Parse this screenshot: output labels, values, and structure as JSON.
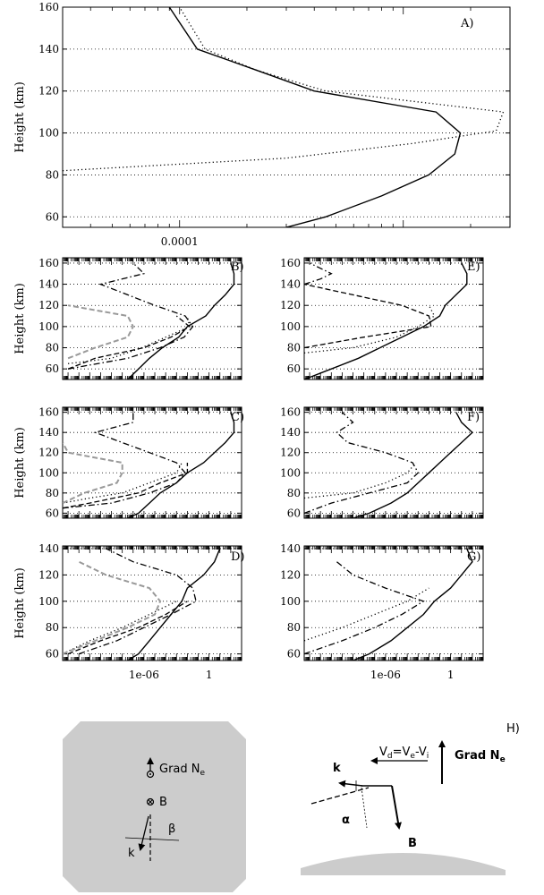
{
  "figure": {
    "y_axis_label": "Height (km)"
  },
  "chart_data": [
    {
      "type": "line",
      "panel_label": "A)",
      "ylabel": "Height (km)",
      "ylim": [
        55,
        160
      ],
      "y_ticks": [
        60,
        80,
        100,
        120,
        140,
        160
      ],
      "x_scale": "log",
      "xlim": [
        3e-05,
        0.003
      ],
      "x_tick_labels": [
        {
          "value": 0.0001,
          "label": "0.0001"
        }
      ],
      "grid": true,
      "series": [
        {
          "style": "solid",
          "x": [
            0.0003,
            0.00045,
            0.0008,
            0.0013,
            0.0017,
            0.0018,
            0.0014,
            0.0004,
            0.00022,
            0.00012,
            9e-05
          ],
          "y": [
            55,
            60,
            70,
            80,
            90,
            100,
            110,
            120,
            130,
            140,
            160
          ]
        },
        {
          "style": "dotted",
          "x": [
            3e-05,
            0.0003,
            0.0011,
            0.0026,
            0.0028,
            0.00045,
            0.00022,
            0.00013,
            0.0001
          ],
          "y": [
            82,
            88,
            95,
            101,
            110,
            120,
            130,
            140,
            160
          ]
        }
      ]
    },
    {
      "type": "line",
      "panel_label": "B)",
      "ylabel": "Height (km)",
      "ylim": [
        50,
        165
      ],
      "y_ticks": [
        60,
        80,
        100,
        120,
        140,
        160
      ],
      "x_scale": "log",
      "grid": true,
      "series": [
        {
          "style": "solid",
          "color": "#000000",
          "y": [
            50,
            60,
            70,
            80,
            90,
            100,
            110,
            120,
            130,
            140,
            150,
            160
          ],
          "x": [
            -7.5,
            -6.5,
            -5.5,
            -4.3,
            -2.8,
            -2,
            -0.3,
            0.5,
            1.5,
            2.3,
            2.3,
            2
          ]
        },
        {
          "style": "dashdot",
          "color": "#000000",
          "y": [
            60,
            70,
            80,
            90,
            100,
            110,
            120,
            130,
            140,
            150,
            160
          ],
          "x": [
            -13,
            -7.5,
            -4.5,
            -2.3,
            -1.5,
            -2.2,
            -5,
            -7.5,
            -10,
            -6,
            -7
          ]
        },
        {
          "style": "dashed",
          "color": "#000000",
          "y": [
            60,
            70,
            80,
            90,
            100,
            110
          ],
          "x": [
            -13,
            -10.5,
            -6,
            -3.5,
            -1.8,
            -3
          ]
        },
        {
          "style": "dotted",
          "color": "#000000",
          "y": [
            65,
            70,
            80,
            90,
            100,
            110
          ],
          "x": [
            -13,
            -9,
            -6.2,
            -4,
            -1.8,
            -2
          ]
        },
        {
          "style": "dashed",
          "color": "#999999",
          "y": [
            70,
            80,
            90,
            100,
            110,
            120
          ],
          "x": [
            -13,
            -10.5,
            -7.5,
            -7,
            -7.5,
            -13
          ]
        }
      ]
    },
    {
      "type": "line",
      "panel_label": "E)",
      "ylim": [
        50,
        165
      ],
      "y_ticks": [
        60,
        80,
        100,
        120,
        140,
        160
      ],
      "x_scale": "log",
      "grid": true,
      "series": [
        {
          "style": "solid",
          "color": "#000000",
          "y": [
            50,
            60,
            70,
            80,
            90,
            100,
            110,
            120,
            130,
            140,
            150,
            160
          ],
          "x": [
            -13.5,
            -11,
            -8.5,
            -6.5,
            -4.5,
            -2.5,
            -1,
            -0.5,
            0.5,
            1.5,
            1.5,
            1
          ]
        },
        {
          "style": "dashdot",
          "color": "#000000",
          "y": [
            140,
            145,
            150,
            155,
            160
          ],
          "x": [
            -13.5,
            -12,
            -11,
            -12,
            -13
          ]
        },
        {
          "style": "dashed",
          "color": "#000000",
          "y": [
            80,
            90,
            100,
            110,
            120,
            130,
            140
          ],
          "x": [
            -13.5,
            -8,
            -1.8,
            -2,
            -4.5,
            -9,
            -13.5
          ]
        },
        {
          "style": "dotted",
          "color": "#000000",
          "y": [
            75,
            80,
            90,
            100,
            110,
            120
          ],
          "x": [
            -13.5,
            -9,
            -5,
            -3,
            -1.5,
            -2
          ]
        }
      ]
    },
    {
      "type": "line",
      "panel_label": "C)",
      "ylabel": "Height (km)",
      "ylim": [
        55,
        165
      ],
      "y_ticks": [
        60,
        80,
        100,
        120,
        140,
        160
      ],
      "x_scale": "log",
      "grid": true,
      "series": [
        {
          "style": "solid",
          "color": "#000000",
          "y": [
            55,
            60,
            70,
            80,
            90,
            100,
            110,
            120,
            130,
            140,
            150,
            160
          ],
          "x": [
            -7.5,
            -6.5,
            -5.5,
            -4.5,
            -3,
            -2,
            -0.5,
            0.5,
            1.5,
            2.3,
            2.3,
            2
          ]
        },
        {
          "style": "dashdot",
          "color": "#000000",
          "y": [
            65,
            70,
            80,
            90,
            100,
            110,
            120,
            130,
            140,
            150,
            160
          ],
          "x": [
            -13.5,
            -9,
            -5.5,
            -3,
            -2.2,
            -3,
            -5.5,
            -8,
            -10.5,
            -7,
            -7
          ]
        },
        {
          "style": "dashed",
          "color": "#000000",
          "y": [
            65,
            70,
            80,
            90,
            100,
            110
          ],
          "x": [
            -13.5,
            -11,
            -6.5,
            -4.5,
            -2,
            -2
          ]
        },
        {
          "style": "dotted",
          "color": "#000000",
          "y": [
            70,
            75,
            80,
            90,
            100,
            110
          ],
          "x": [
            -13.5,
            -11,
            -8,
            -5.5,
            -3,
            -2.5
          ]
        },
        {
          "style": "dashed",
          "color": "#999999",
          "y": [
            70,
            80,
            90,
            100,
            110,
            120,
            130
          ],
          "x": [
            -13.5,
            -11.5,
            -8.5,
            -8,
            -8,
            -13,
            -13.5
          ]
        }
      ]
    },
    {
      "type": "line",
      "panel_label": "F)",
      "ylim": [
        55,
        165
      ],
      "y_ticks": [
        60,
        80,
        100,
        120,
        140,
        160
      ],
      "x_scale": "log",
      "grid": true,
      "series": [
        {
          "style": "solid",
          "color": "#000000",
          "y": [
            55,
            60,
            70,
            80,
            90,
            100,
            110,
            120,
            130,
            140,
            150,
            160
          ],
          "x": [
            -9,
            -7.5,
            -5.5,
            -4,
            -3,
            -2,
            -1,
            0,
            1,
            2,
            1,
            0.5
          ]
        },
        {
          "style": "dashdot",
          "color": "#000000",
          "y": [
            60,
            70,
            80,
            90,
            100,
            110,
            120,
            130,
            140,
            150,
            160
          ],
          "x": [
            -13.5,
            -11,
            -7.5,
            -4,
            -3,
            -3.5,
            -6,
            -9.5,
            -10.5,
            -9,
            -10
          ]
        },
        {
          "style": "dotted",
          "color": "#000000",
          "y": [
            75,
            80,
            90,
            100,
            110
          ],
          "x": [
            -13.5,
            -9,
            -6,
            -4,
            -3.2
          ]
        }
      ]
    },
    {
      "type": "line",
      "panel_label": "D)",
      "ylabel": "Height (km)",
      "ylim": [
        55,
        142
      ],
      "y_ticks": [
        60,
        80,
        100,
        120,
        140
      ],
      "x_scale": "log",
      "xlim": [
        -13.5,
        3
      ],
      "x_tick_labels": [
        {
          "value": -6,
          "label": "1e-06"
        },
        {
          "value": 0,
          "label": "1"
        }
      ],
      "grid": true,
      "series": [
        {
          "style": "solid",
          "color": "#000000",
          "y": [
            55,
            60,
            70,
            80,
            90,
            100,
            110,
            120,
            130,
            140
          ],
          "x": [
            -7.5,
            -6.5,
            -5.5,
            -4.5,
            -3.5,
            -2.5,
            -2,
            -0.5,
            0.5,
            1
          ]
        },
        {
          "style": "dashdot",
          "color": "#000000",
          "y": [
            60,
            70,
            80,
            90,
            100,
            110,
            120,
            130,
            140
          ],
          "x": [
            -12,
            -8.5,
            -6,
            -3.5,
            -1.2,
            -1.5,
            -3,
            -7,
            -9.5
          ]
        },
        {
          "style": "dashed",
          "color": "#000000",
          "y": [
            60,
            70,
            80,
            90,
            100
          ],
          "x": [
            -13,
            -10,
            -6.5,
            -4,
            -2
          ]
        },
        {
          "style": "dotted",
          "color": "#000000",
          "y": [
            60,
            70,
            80,
            90,
            100
          ],
          "x": [
            -13.5,
            -11,
            -8,
            -5.5,
            -3
          ]
        },
        {
          "style": "dashed",
          "color": "#999999",
          "y": [
            60,
            70,
            80,
            90,
            100,
            110,
            120,
            130
          ],
          "x": [
            -13.5,
            -10.5,
            -7.5,
            -5,
            -4.5,
            -5.5,
            -9.5,
            -12
          ]
        }
      ]
    },
    {
      "type": "line",
      "panel_label": "G)",
      "ylim": [
        55,
        142
      ],
      "y_ticks": [
        60,
        80,
        100,
        120,
        140
      ],
      "x_scale": "log",
      "xlim": [
        -13.5,
        3
      ],
      "x_tick_labels": [
        {
          "value": -6,
          "label": "1e-06"
        },
        {
          "value": 0,
          "label": "1"
        }
      ],
      "grid": true,
      "series": [
        {
          "style": "solid",
          "color": "#000000",
          "y": [
            55,
            60,
            70,
            80,
            90,
            100,
            110,
            120,
            130,
            140
          ],
          "x": [
            -9,
            -7.5,
            -5.5,
            -4,
            -2.5,
            -1.5,
            0,
            1,
            2,
            1.5
          ]
        },
        {
          "style": "dashdot",
          "color": "#000000",
          "y": [
            60,
            70,
            80,
            90,
            100,
            110,
            120,
            130
          ],
          "x": [
            -13.5,
            -10,
            -7,
            -4.5,
            -2.5,
            -6,
            -9,
            -10.5
          ]
        },
        {
          "style": "dotted",
          "color": "#000000",
          "y": [
            70,
            80,
            90,
            100,
            110
          ],
          "x": [
            -13.5,
            -10,
            -7,
            -4,
            -2
          ]
        }
      ]
    }
  ],
  "diagrams": {
    "left": {
      "grad_label": "Grad N",
      "grad_sub": "e",
      "b_label": "B",
      "beta_label": "β",
      "k_label": "k"
    },
    "right": {
      "panel_label": "H)",
      "vd_main": "V",
      "vd_sub1": "d",
      "vd_mid": "=V",
      "vd_sub2": "e",
      "vd_end": "-V",
      "vd_sub3": "i",
      "grad_label": "Grad N",
      "grad_sub": "e",
      "k_label": "k",
      "alpha_label": "α",
      "b_label": "B",
      "ground_color": "#cccccc"
    },
    "left_background": "#cccccc"
  }
}
